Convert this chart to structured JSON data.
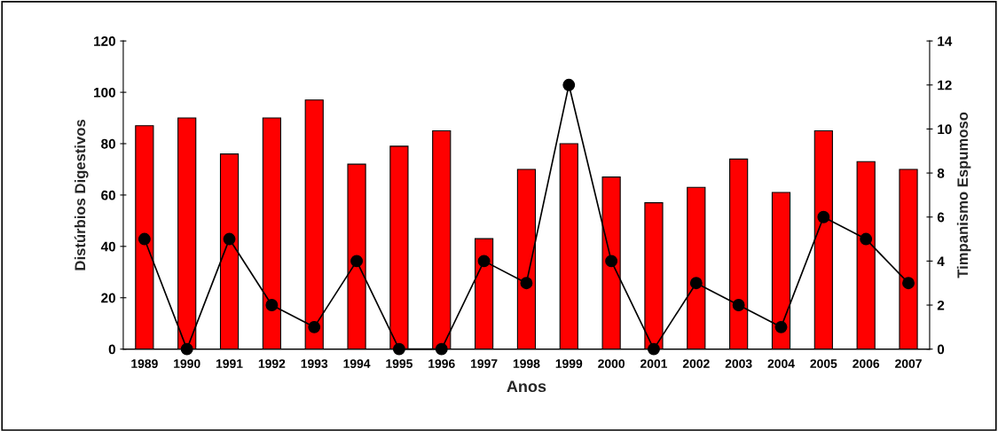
{
  "chart_data": {
    "type": "bar",
    "xlabel": "Anos",
    "ylabel": "Distúrbios Digestivos",
    "y2label": "Timpanismo Espumoso",
    "categories": [
      "1989",
      "1990",
      "1991",
      "1992",
      "1993",
      "1994",
      "1995",
      "1996",
      "1997",
      "1998",
      "1999",
      "2000",
      "2001",
      "2002",
      "2003",
      "2004",
      "2005",
      "2006",
      "2007"
    ],
    "series": [
      {
        "color": "#ff0000",
        "values": [
          87,
          90,
          76,
          90,
          97,
          72,
          79,
          85,
          43,
          70,
          80,
          67,
          57,
          63,
          74,
          61,
          85,
          73,
          70
        ]
      },
      {
        "type": "line",
        "axis": "y2",
        "color": "#000000",
        "marker": "circle",
        "line_style": "solid",
        "values": [
          5,
          0,
          5,
          2,
          1,
          4,
          0,
          0,
          4,
          3,
          12,
          4,
          0,
          3,
          2,
          1,
          6,
          5,
          3
        ]
      }
    ],
    "ylim": [
      0,
      120
    ],
    "yticks": [
      0,
      20,
      40,
      60,
      80,
      100,
      120
    ],
    "y2lim": [
      0,
      14
    ],
    "y2ticks": [
      0,
      2,
      4,
      6,
      8,
      10,
      12,
      14
    ],
    "grid": false,
    "legend": false
  }
}
